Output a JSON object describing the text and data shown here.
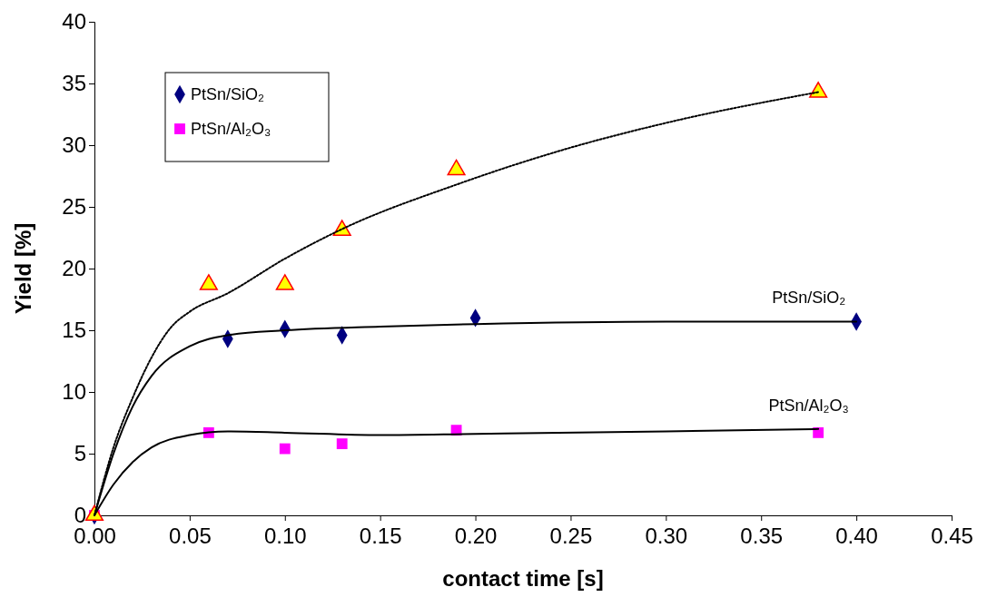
{
  "chart_data": {
    "type": "scatter",
    "xlabel": "contact time [s]",
    "ylabel": "Yield [%]",
    "xlim": [
      0,
      0.45
    ],
    "ylim": [
      0,
      40
    ],
    "xticks": [
      {
        "value": 0,
        "label": "0.00"
      },
      {
        "value": 0.05,
        "label": "0.05"
      },
      {
        "value": 0.1,
        "label": "0.10"
      },
      {
        "value": 0.15,
        "label": "0.15"
      },
      {
        "value": 0.2,
        "label": "0.20"
      },
      {
        "value": 0.25,
        "label": "0.25"
      },
      {
        "value": 0.3,
        "label": "0.30"
      },
      {
        "value": 0.35,
        "label": "0.35"
      },
      {
        "value": 0.4,
        "label": "0.40"
      },
      {
        "value": 0.45,
        "label": "0.45"
      }
    ],
    "yticks": [
      0,
      5,
      10,
      15,
      20,
      25,
      30,
      35,
      40
    ],
    "grid": false,
    "legend": "top left",
    "series": [
      {
        "type": "line",
        "color": "#000000",
        "line_style": "dotted",
        "marker": "none",
        "x": [
          0,
          0.01,
          0.02,
          0.03,
          0.04,
          0.05,
          0.07,
          0.1,
          0.13,
          0.19,
          0.25,
          0.3,
          0.38
        ],
        "values": [
          0,
          5.5,
          9.5,
          12.8,
          15.2,
          16.5,
          18,
          20.8,
          23.2,
          26.8,
          29.8,
          31.8,
          34.3
        ]
      },
      {
        "type": "line",
        "color": "#000000",
        "line_style": "solid",
        "marker": "none",
        "x": [
          0,
          0.01,
          0.02,
          0.03,
          0.05,
          0.07,
          0.1,
          0.15,
          0.2,
          0.3,
          0.4
        ],
        "values": [
          0,
          5,
          8.8,
          11.3,
          13.7,
          14.6,
          15,
          15.3,
          15.5,
          15.7,
          15.7
        ]
      },
      {
        "type": "line",
        "color": "#000000",
        "line_style": "solid",
        "marker": "none",
        "x": [
          0,
          0.01,
          0.02,
          0.03,
          0.05,
          0.07,
          0.1,
          0.15,
          0.2,
          0.3,
          0.38
        ],
        "values": [
          0,
          2.5,
          4.3,
          5.5,
          6.5,
          6.8,
          6.7,
          6.5,
          6.6,
          6.8,
          7.0
        ]
      },
      {
        "name": "PtSn/SiO₂",
        "type": "scatter",
        "marker": "diamond",
        "color": "#000080",
        "x": [
          0,
          0.07,
          0.1,
          0.13,
          0.2,
          0.4
        ],
        "values": [
          0,
          14.3,
          15.1,
          14.6,
          16.0,
          15.7
        ]
      },
      {
        "name": "PtSn/Al₂O₃",
        "type": "scatter",
        "marker": "square",
        "color": "#ff00ff",
        "x": [
          0,
          0.06,
          0.1,
          0.13,
          0.19,
          0.38
        ],
        "values": [
          0,
          6.7,
          5.4,
          5.8,
          6.9,
          6.7
        ]
      },
      {
        "type": "scatter",
        "marker": "triangle",
        "color": "#ffff00",
        "x": [
          0,
          0.06,
          0.1,
          0.13,
          0.19,
          0.38
        ],
        "values": [
          0,
          18.7,
          18.7,
          23.1,
          28.0,
          34.3
        ]
      }
    ],
    "annotations": [
      {
        "text": "PtSn/SiO₂",
        "x": 0.375,
        "y": 15.7
      },
      {
        "text": "PtSn/Al₂O₃",
        "x": 0.375,
        "y": 7.0
      }
    ]
  }
}
